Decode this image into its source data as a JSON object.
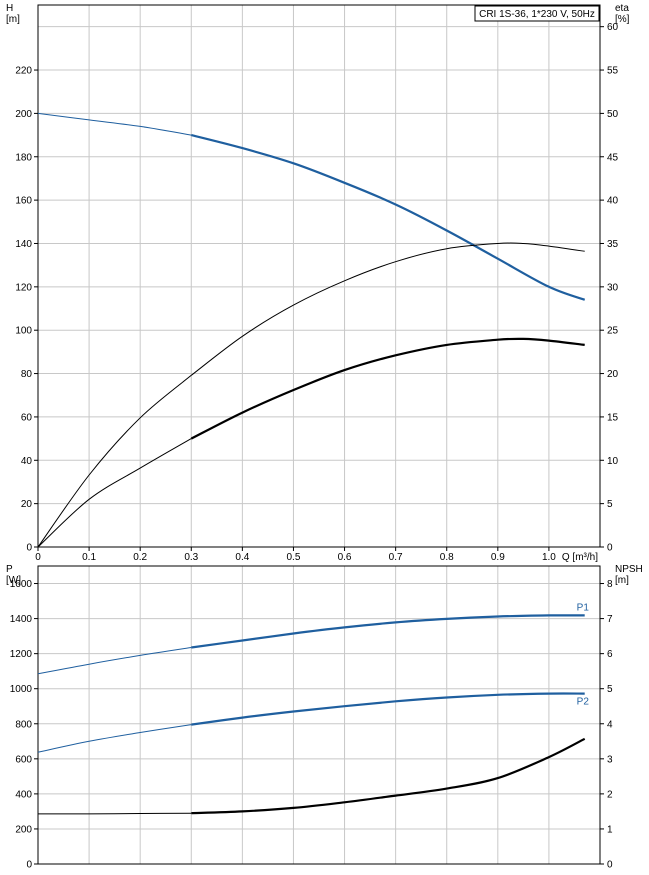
{
  "chart_data": [
    {
      "type": "line",
      "title": "CRI 1S-36, 1*230 V, 50Hz",
      "xlabel": "Q [m³/h]",
      "ylabel_line1": "H",
      "ylabel_line2": "[m]",
      "y2label_line1": "eta",
      "y2label_line2": "[%]",
      "xlim": [
        0,
        1.1
      ],
      "ylim": [
        0,
        250
      ],
      "y2lim": [
        0,
        62.5
      ],
      "xticks": [
        "0",
        "0.1",
        "0.2",
        "0.3",
        "0.4",
        "0.5",
        "0.6",
        "0.7",
        "0.8",
        "0.9",
        "1.0"
      ],
      "yticks": [
        "0",
        "20",
        "40",
        "60",
        "80",
        "100",
        "120",
        "140",
        "160",
        "180",
        "200",
        "220"
      ],
      "y2ticks": [
        "0",
        "5",
        "10",
        "15",
        "20",
        "25",
        "30",
        "35",
        "40",
        "45",
        "50",
        "55",
        "60"
      ],
      "grid": true,
      "series": [
        {
          "axis": "left",
          "color": "#1f5f9f",
          "x": [
            0,
            0.1,
            0.2,
            0.3,
            0.4,
            0.5,
            0.6,
            0.7,
            0.8,
            0.9,
            1.0,
            1.07
          ],
          "y": [
            200,
            197,
            194,
            190,
            184,
            177,
            168,
            158,
            146,
            133,
            120,
            114
          ]
        },
        {
          "axis": "right",
          "color": "#000000",
          "x": [
            0,
            0.1,
            0.2,
            0.3,
            0.4,
            0.5,
            0.6,
            0.7,
            0.8,
            0.9,
            0.95,
            1.0,
            1.07
          ],
          "y": [
            0,
            8.3,
            14.9,
            19.8,
            24.3,
            27.9,
            30.7,
            32.9,
            34.4,
            35.0,
            35.0,
            34.7,
            34.1
          ]
        },
        {
          "axis": "right",
          "color": "#000000",
          "x": [
            0,
            0.1,
            0.2,
            0.3,
            0.4,
            0.5,
            0.6,
            0.7,
            0.8,
            0.9,
            0.95,
            1.0,
            1.07
          ],
          "y": [
            0,
            5.5,
            9.1,
            12.5,
            15.5,
            18.1,
            20.4,
            22.1,
            23.3,
            23.9,
            24.0,
            23.8,
            23.3
          ]
        }
      ]
    },
    {
      "type": "line",
      "ylabel_line1": "P",
      "ylabel_line2": "[W]",
      "y2label_line1": "NPSH",
      "y2label_line2": "[m]",
      "xlim": [
        0,
        1.1
      ],
      "ylim": [
        0,
        1700
      ],
      "y2lim": [
        0,
        8.5
      ],
      "yticks": [
        "0",
        "200",
        "400",
        "600",
        "800",
        "1000",
        "1200",
        "1400",
        "1600"
      ],
      "y2ticks": [
        "0",
        "1",
        "2",
        "3",
        "4",
        "5",
        "6",
        "7",
        "8"
      ],
      "grid": true,
      "series": [
        {
          "name": "P1",
          "axis": "left",
          "color": "#1f5f9f",
          "x": [
            0,
            0.1,
            0.2,
            0.3,
            0.4,
            0.5,
            0.6,
            0.7,
            0.8,
            0.9,
            1.0,
            1.07
          ],
          "y": [
            1085,
            1140,
            1190,
            1235,
            1275,
            1315,
            1350,
            1378,
            1398,
            1412,
            1418,
            1418
          ]
        },
        {
          "name": "P2",
          "axis": "left",
          "color": "#1f5f9f",
          "x": [
            0,
            0.1,
            0.2,
            0.3,
            0.4,
            0.5,
            0.6,
            0.7,
            0.8,
            0.9,
            1.0,
            1.07
          ],
          "y": [
            638,
            700,
            750,
            795,
            835,
            870,
            900,
            928,
            950,
            965,
            972,
            972
          ]
        },
        {
          "axis": "right",
          "color": "#000000",
          "x": [
            0,
            0.1,
            0.2,
            0.3,
            0.4,
            0.5,
            0.6,
            0.7,
            0.8,
            0.9,
            1.0,
            1.07
          ],
          "y": [
            1.43,
            1.43,
            1.44,
            1.45,
            1.5,
            1.6,
            1.76,
            1.95,
            2.15,
            2.45,
            3.05,
            3.57
          ]
        }
      ]
    }
  ]
}
